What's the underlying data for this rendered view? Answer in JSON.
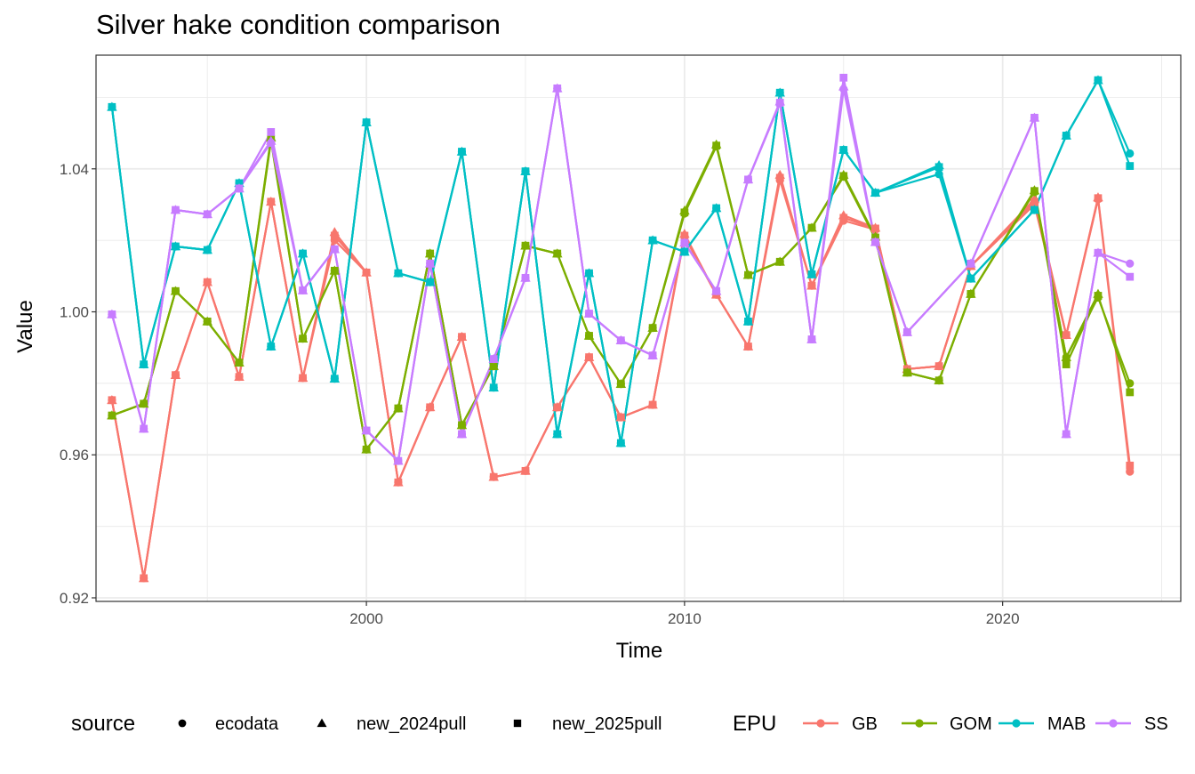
{
  "chart_data": {
    "type": "line",
    "title": "Silver hake condition comparison",
    "xlabel": "Time",
    "ylabel": "Value",
    "xlim": [
      1991.5,
      2025.6
    ],
    "ylim": [
      0.919,
      1.0718
    ],
    "x_ticks": [
      2000,
      2010,
      2020
    ],
    "x_tick_labels": [
      "2000",
      "2010",
      "2020"
    ],
    "y_ticks": [
      0.92,
      0.96,
      1.0,
      1.04
    ],
    "y_tick_labels": [
      "0.92",
      "0.96",
      "1.00",
      "1.04"
    ],
    "grid": true,
    "legend_position": "bottom",
    "x": [
      1992,
      1993,
      1994,
      1995,
      1996,
      1997,
      1998,
      1999,
      2000,
      2001,
      2002,
      2003,
      2004,
      2005,
      2006,
      2007,
      2008,
      2009,
      2010,
      2011,
      2012,
      2013,
      2014,
      2015,
      2016,
      2017,
      2018,
      2019,
      2021,
      2022,
      2023,
      2024
    ],
    "series": [
      {
        "name": "GB",
        "color": "#F8766D",
        "values": {
          "ecodata": [
            0.9753,
            0.9255,
            0.9823,
            1.0083,
            0.9818,
            1.0308,
            0.9815,
            1.02,
            1.011,
            0.9523,
            0.9733,
            0.993,
            0.9538,
            0.9555,
            0.9733,
            0.9873,
            0.9705,
            0.974,
            1.021,
            1.0048,
            0.9903,
            1.0368,
            1.0073,
            1.0255,
            1.023,
            0.984,
            0.9848,
            1.0128,
            1.03,
            0.9935,
            1.0315,
            0.9553
          ],
          "new_2024pull": [
            0.9753,
            0.9255,
            0.9823,
            1.0083,
            0.9818,
            1.0308,
            0.9815,
            1.0223,
            1.011,
            0.9523,
            0.9733,
            0.993,
            0.9538,
            0.9555,
            0.9733,
            0.9873,
            0.9705,
            0.974,
            1.0218,
            1.0048,
            0.9903,
            1.0383,
            1.0073,
            1.027,
            1.0235,
            0.984,
            0.9848,
            1.0128,
            1.0315,
            0.9935,
            1.032,
            null
          ],
          "new_2025pull": [
            0.9753,
            0.9255,
            0.9823,
            1.0083,
            0.9818,
            1.0308,
            0.9815,
            1.0213,
            1.011,
            0.9523,
            0.9733,
            0.993,
            0.9538,
            0.9555,
            0.9733,
            0.9873,
            0.9705,
            0.974,
            1.0213,
            1.0048,
            0.9903,
            1.0375,
            1.0073,
            1.0263,
            1.0233,
            0.984,
            0.9848,
            1.0128,
            1.0308,
            0.9935,
            1.0318,
            0.957
          ]
        }
      },
      {
        "name": "GOM",
        "color": "#7CAE00",
        "values": {
          "ecodata": [
            0.971,
            0.9743,
            1.0058,
            0.9973,
            0.9858,
            1.0478,
            0.9925,
            1.0115,
            0.9615,
            0.973,
            1.0163,
            0.9683,
            0.9848,
            1.0185,
            1.0163,
            0.9933,
            0.9798,
            0.9955,
            1.0275,
            1.0463,
            1.0103,
            1.014,
            1.0235,
            1.0378,
            1.0205,
            0.983,
            0.9808,
            1.005,
            1.0335,
            0.9873,
            1.004,
            0.98
          ],
          "new_2024pull": [
            0.971,
            0.9743,
            1.0058,
            0.9973,
            0.9858,
            1.0488,
            0.9925,
            1.0115,
            0.9615,
            0.973,
            1.0163,
            0.9683,
            0.9848,
            1.0185,
            1.0163,
            0.9933,
            0.9798,
            0.9955,
            1.0283,
            1.0468,
            1.0103,
            1.014,
            1.0235,
            1.0383,
            1.021,
            0.983,
            0.9808,
            1.005,
            1.034,
            0.9873,
            1.005,
            null
          ],
          "new_2025pull": [
            0.971,
            0.9743,
            1.0058,
            0.9973,
            0.9858,
            1.0483,
            0.9925,
            1.0115,
            0.9615,
            0.973,
            1.0163,
            0.9683,
            0.9848,
            1.0185,
            1.0163,
            0.9933,
            0.9798,
            0.9955,
            1.0278,
            1.0465,
            1.0103,
            1.014,
            1.0235,
            1.038,
            1.0208,
            0.983,
            0.9808,
            1.005,
            1.0338,
            0.9853,
            1.0045,
            0.9775
          ]
        }
      },
      {
        "name": "MAB",
        "color": "#00BFC4",
        "values": {
          "ecodata": [
            1.0573,
            0.9853,
            1.0183,
            1.0173,
            1.036,
            0.9903,
            1.0163,
            0.9813,
            1.053,
            1.0108,
            1.0083,
            1.0448,
            0.9788,
            1.0393,
            0.9658,
            1.0108,
            0.9633,
            1.02,
            1.0168,
            1.029,
            0.9973,
            1.0613,
            1.0105,
            1.0453,
            1.0333,
            null,
            1.0385,
            1.0093,
            1.0285,
            1.0493,
            1.0648,
            1.0443
          ],
          "new_2024pull": [
            1.0573,
            0.9853,
            1.0183,
            1.0173,
            1.036,
            0.9903,
            1.0163,
            0.9813,
            1.053,
            1.0108,
            1.0083,
            1.0448,
            0.9788,
            1.0393,
            0.9658,
            1.0108,
            0.9633,
            1.02,
            1.0168,
            1.029,
            0.9973,
            1.0613,
            1.0105,
            1.0453,
            1.0333,
            null,
            1.041,
            1.0093,
            1.0285,
            1.0493,
            1.0648,
            null
          ],
          "new_2025pull": [
            1.0573,
            0.9853,
            1.0183,
            1.0173,
            1.036,
            0.9903,
            1.0163,
            0.9813,
            1.053,
            1.0108,
            1.0083,
            1.0448,
            0.9788,
            1.0393,
            0.9658,
            1.0108,
            0.9633,
            1.02,
            1.0168,
            1.029,
            0.9973,
            1.0613,
            1.0105,
            1.0453,
            1.0333,
            null,
            1.0405,
            1.0093,
            1.0285,
            1.0493,
            1.0648,
            1.0408
          ]
        }
      },
      {
        "name": "SS",
        "color": "#C77CFF",
        "values": {
          "ecodata": [
            0.9993,
            0.9673,
            1.0285,
            1.0273,
            1.0345,
            1.0473,
            1.006,
            1.0175,
            0.9668,
            0.9583,
            1.0135,
            0.9658,
            0.9868,
            1.0095,
            1.0625,
            0.9995,
            0.992,
            0.9878,
            1.0193,
            1.0058,
            1.037,
            1.0583,
            0.9923,
            1.0623,
            1.0195,
            0.9943,
            null,
            1.0135,
            1.0543,
            0.9658,
            1.0165,
            1.0135
          ],
          "new_2024pull": [
            0.9993,
            0.9673,
            1.0285,
            1.0273,
            1.0345,
            1.0478,
            1.006,
            1.0175,
            0.9668,
            0.9583,
            1.0135,
            0.9658,
            0.9868,
            1.0095,
            1.0625,
            0.9995,
            0.992,
            0.9878,
            1.0193,
            1.0058,
            1.037,
            1.0588,
            0.9923,
            1.063,
            1.0195,
            0.9943,
            null,
            1.0135,
            1.0543,
            0.9658,
            1.0165,
            null
          ],
          "new_2025pull": [
            0.9993,
            0.9673,
            1.0285,
            1.0273,
            1.0345,
            1.0503,
            1.006,
            1.0175,
            0.9668,
            0.9583,
            1.0135,
            0.9658,
            0.9868,
            1.0095,
            1.0625,
            0.9995,
            0.992,
            0.9878,
            1.0193,
            1.0058,
            1.037,
            1.0585,
            0.9923,
            1.0655,
            1.0195,
            0.9943,
            null,
            1.0135,
            1.0543,
            0.9658,
            1.0165,
            1.0098
          ]
        }
      }
    ],
    "legend": {
      "source_title": "source",
      "sources": [
        {
          "key": "ecodata",
          "label": "ecodata",
          "shape": "circle"
        },
        {
          "key": "new_2024pull",
          "label": "new_2024pull",
          "shape": "triangle"
        },
        {
          "key": "new_2025pull",
          "label": "new_2025pull",
          "shape": "square"
        }
      ],
      "epu_title": "EPU",
      "epus": [
        {
          "label": "GB",
          "color": "#F8766D"
        },
        {
          "label": "GOM",
          "color": "#7CAE00"
        },
        {
          "label": "MAB",
          "color": "#00BFC4"
        },
        {
          "label": "SS",
          "color": "#C77CFF"
        }
      ]
    }
  }
}
